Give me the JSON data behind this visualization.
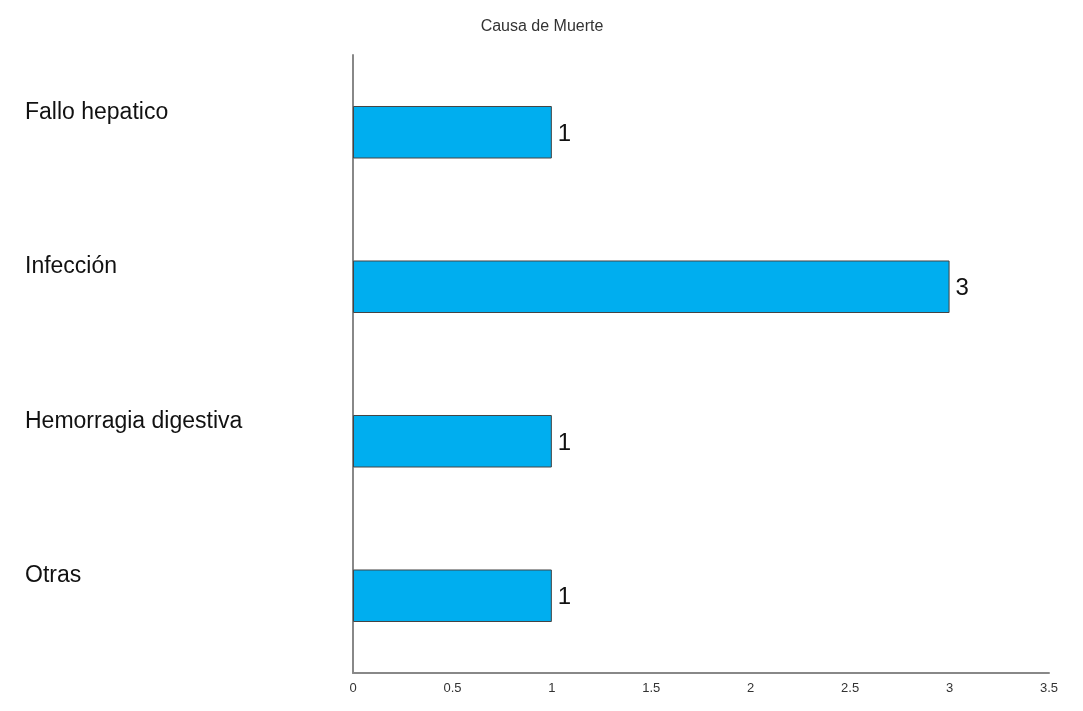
{
  "chart_data": {
    "type": "bar",
    "orientation": "horizontal",
    "title": "Causa de Muerte",
    "categories": [
      "Fallo hepatico",
      "Infección",
      "Hemorragia digestiva",
      "Otras"
    ],
    "values": [
      1,
      3,
      1,
      1
    ],
    "color": "#00aeef",
    "xlim": [
      0,
      3.5
    ],
    "xticks": [
      0,
      0.5,
      1,
      1.5,
      2,
      2.5,
      3,
      3.5
    ],
    "data_labels": true
  }
}
